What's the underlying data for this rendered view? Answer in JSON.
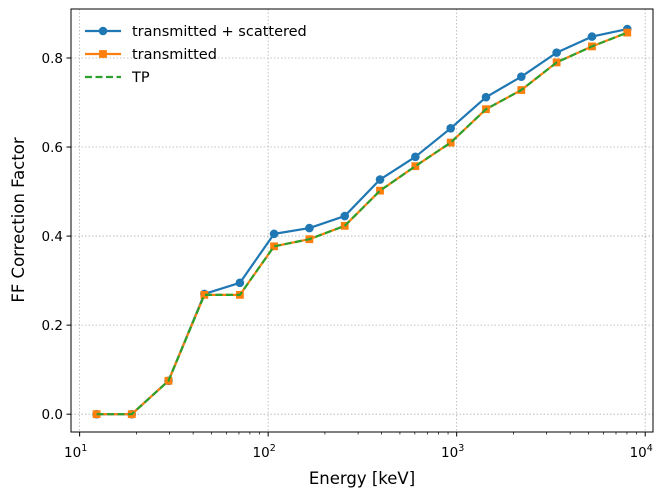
{
  "chart_data": {
    "type": "line",
    "xlabel": "Energy [keV]",
    "ylabel": "FF Correction Factor",
    "xscale": "log",
    "xlim": [
      9,
      11000
    ],
    "ylim": [
      -0.04,
      0.91
    ],
    "xticks": [
      {
        "value": 10,
        "base": "10",
        "exp": "1"
      },
      {
        "value": 100,
        "base": "10",
        "exp": "2"
      },
      {
        "value": 1000,
        "base": "10",
        "exp": "3"
      },
      {
        "value": 10000,
        "base": "10",
        "exp": "4"
      }
    ],
    "yticks": [
      0.0,
      0.2,
      0.4,
      0.6,
      0.8
    ],
    "ytick_labels": [
      "0.0",
      "0.2",
      "0.4",
      "0.6",
      "0.8"
    ],
    "grid": true,
    "legend_position": "top-left",
    "x": [
      12.3,
      18.9,
      29.6,
      45.9,
      70.8,
      107.5,
      165.5,
      254.8,
      392.1,
      603.7,
      929.3,
      1430.7,
      2202.4,
      3390.4,
      5219.1,
      8034.5
    ],
    "series": [
      {
        "name": "transmitted + scattered",
        "color": "#1f77b4",
        "marker": "circle",
        "linestyle": "solid",
        "values": [
          0.0,
          0.0,
          0.075,
          0.27,
          0.295,
          0.405,
          0.418,
          0.445,
          0.527,
          0.578,
          0.642,
          0.712,
          0.758,
          0.812,
          0.848,
          0.865
        ]
      },
      {
        "name": "transmitted",
        "color": "#ff7f0e",
        "marker": "square",
        "linestyle": "solid",
        "values": [
          0.0,
          0.0,
          0.075,
          0.268,
          0.268,
          0.377,
          0.393,
          0.423,
          0.502,
          0.557,
          0.61,
          0.685,
          0.728,
          0.79,
          0.826,
          0.857
        ]
      },
      {
        "name": "TP",
        "color": "#2ca02c",
        "marker": "none",
        "linestyle": "dashed",
        "values": [
          0.0,
          0.0,
          0.075,
          0.268,
          0.268,
          0.377,
          0.393,
          0.423,
          0.502,
          0.557,
          0.61,
          0.685,
          0.728,
          0.79,
          0.826,
          0.857
        ]
      }
    ]
  }
}
